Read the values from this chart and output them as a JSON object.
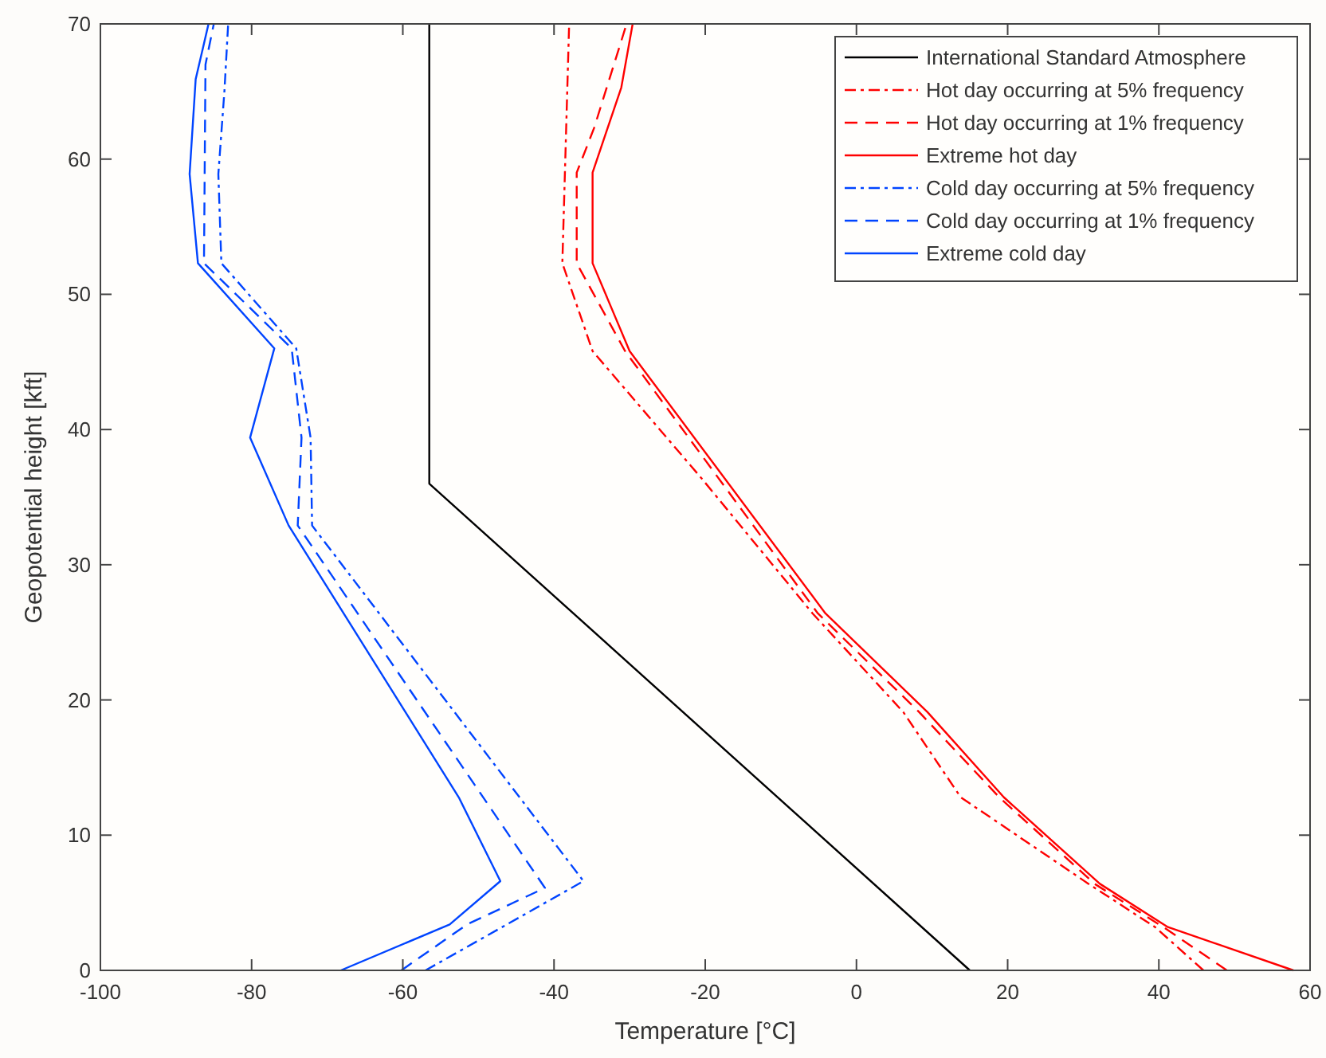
{
  "chart_data": {
    "type": "line",
    "xlabel": "Temperature [°C]",
    "ylabel": "Geopotential height [kft]",
    "xlim": [
      -100,
      60
    ],
    "xticks": [
      -100,
      -80,
      -60,
      -40,
      -20,
      0,
      20,
      40,
      60
    ],
    "ylim": [
      0,
      70
    ],
    "yticks": [
      0,
      10,
      20,
      30,
      40,
      50,
      60,
      70
    ],
    "grid": false,
    "legend": "top right",
    "marker": "none",
    "series": [
      {
        "name": "International Standard Atmosphere",
        "color": "#000000",
        "line_style": "solid",
        "x": [
          15,
          -56.5,
          -56.5
        ],
        "values": [
          0,
          36,
          70
        ]
      },
      {
        "name": "Hot day occurring at 5% frequency",
        "color": "#ff0000",
        "line_style": "dashdot",
        "x": [
          45.9,
          39.5,
          30.7,
          13.8,
          6.2,
          -5.8,
          -20.5,
          -34.9,
          -38.9,
          -38
        ],
        "values": [
          0,
          3.2,
          6.4,
          12.8,
          19.1,
          26.4,
          36.4,
          45.8,
          52.3,
          70
        ]
      },
      {
        "name": "Hot day occurring at 1% frequency",
        "color": "#ff0000",
        "line_style": "dashed",
        "x": [
          49,
          40.6,
          31.5,
          18.9,
          8.3,
          -5.1,
          -30.6,
          -37,
          -37,
          -34.7,
          -30.4
        ],
        "values": [
          0,
          3.2,
          6.4,
          12.8,
          19.1,
          26.4,
          45.8,
          52.3,
          59,
          62.3,
          70
        ]
      },
      {
        "name": "Extreme hot day",
        "color": "#ff0000",
        "line_style": "solid",
        "x": [
          57.8,
          41.2,
          32.2,
          19.5,
          9.4,
          -4.1,
          -30,
          -34.9,
          -34.9,
          -31.1,
          -29.6
        ],
        "values": [
          0,
          3.2,
          6.4,
          12.8,
          19.1,
          26.4,
          45.8,
          52.3,
          59,
          65.3,
          70
        ]
      },
      {
        "name": "Cold day occurring at 5% frequency",
        "color": "#0044ff",
        "line_style": "dashdot",
        "x": [
          -57,
          -36.1,
          -72,
          -72.2,
          -74.1,
          -84,
          -84.4,
          -83.6,
          -83.1
        ],
        "values": [
          0,
          6.6,
          32.9,
          39.4,
          46,
          52.3,
          58.9,
          65,
          70
        ]
      },
      {
        "name": "Cold day occurring at 1% frequency",
        "color": "#0044ff",
        "line_style": "dashed",
        "x": [
          -60.2,
          -51.5,
          -41.2,
          -73.9,
          -73.4,
          -74.7,
          -86.3,
          -86.1,
          -85
        ],
        "values": [
          0,
          3.4,
          6.1,
          32.9,
          39.4,
          46,
          52.3,
          67,
          70
        ]
      },
      {
        "name": "Extreme cold day",
        "color": "#0044ff",
        "line_style": "solid",
        "x": [
          -68.2,
          -53.8,
          -47.1,
          -52.6,
          -75.1,
          -80.2,
          -77,
          -87.1,
          -88.2,
          -87.4,
          -85.7
        ],
        "values": [
          0,
          3.4,
          6.6,
          12.8,
          32.9,
          39.4,
          46,
          52.3,
          58.9,
          65.9,
          70
        ]
      }
    ]
  }
}
